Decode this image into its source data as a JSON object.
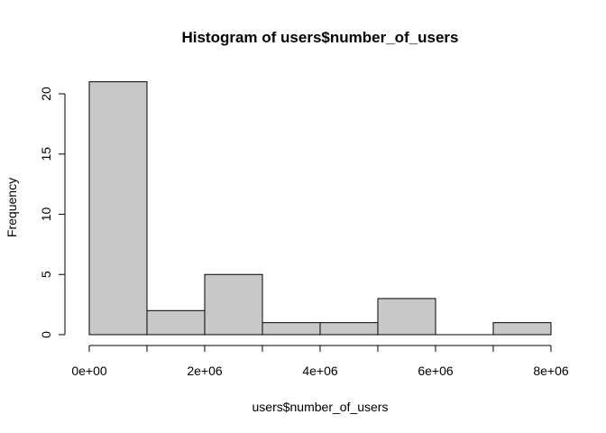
{
  "chart_data": {
    "type": "bar",
    "subtype": "histogram",
    "title": "Histogram of users$number_of_users",
    "xlabel": "users$number_of_users",
    "ylabel": "Frequency",
    "bins": [
      {
        "start": 0,
        "end": 1000000,
        "count": 21
      },
      {
        "start": 1000000,
        "end": 2000000,
        "count": 2
      },
      {
        "start": 2000000,
        "end": 3000000,
        "count": 5
      },
      {
        "start": 3000000,
        "end": 4000000,
        "count": 1
      },
      {
        "start": 4000000,
        "end": 5000000,
        "count": 1
      },
      {
        "start": 5000000,
        "end": 6000000,
        "count": 3
      },
      {
        "start": 6000000,
        "end": 7000000,
        "count": 0
      },
      {
        "start": 7000000,
        "end": 8000000,
        "count": 1
      }
    ],
    "xlim": [
      0,
      8000000
    ],
    "ylim": [
      0,
      21
    ],
    "x_ticks": [
      {
        "value": 0,
        "label": "0e+00"
      },
      {
        "value": 2000000,
        "label": "2e+06"
      },
      {
        "value": 4000000,
        "label": "4e+06"
      },
      {
        "value": 6000000,
        "label": "6e+06"
      },
      {
        "value": 8000000,
        "label": "8e+06"
      }
    ],
    "x_minor_ticks": [
      1000000,
      3000000,
      5000000,
      7000000
    ],
    "y_ticks": [
      {
        "value": 0,
        "label": "0"
      },
      {
        "value": 5,
        "label": "5"
      },
      {
        "value": 10,
        "label": "10"
      },
      {
        "value": 15,
        "label": "15"
      },
      {
        "value": 20,
        "label": "20"
      }
    ],
    "bar_color": "#c8c8c8",
    "edge_color": "#000000",
    "grid": false,
    "legend": "none"
  }
}
